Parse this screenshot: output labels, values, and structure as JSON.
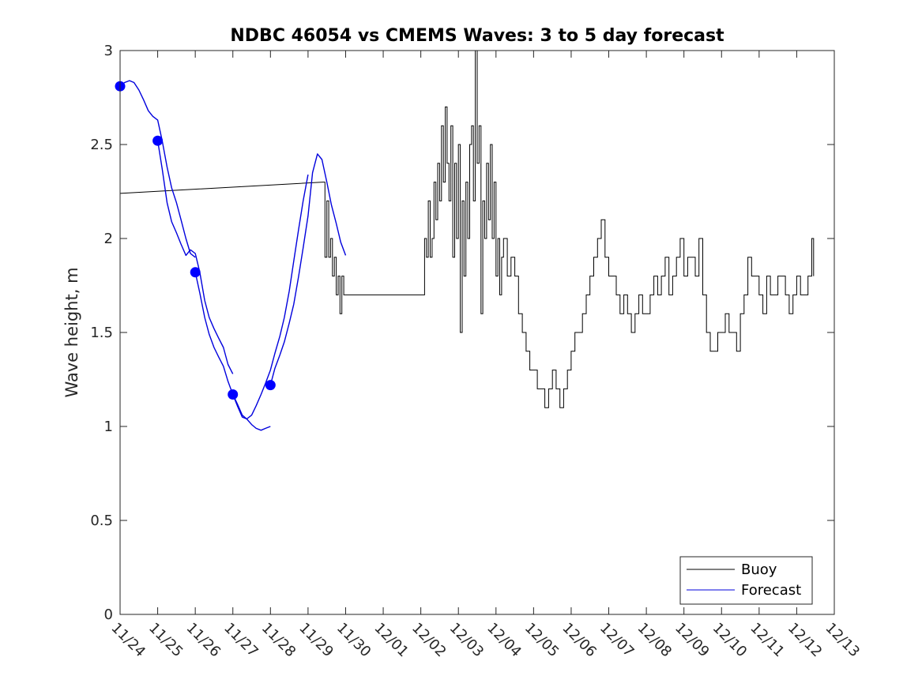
{
  "chart_data": {
    "type": "line",
    "title": "NDBC 46054 vs CMEMS Waves: 3 to 5 day forecast",
    "xlabel": "",
    "ylabel": "Wave height, m",
    "xlim": [
      0,
      19
    ],
    "ylim": [
      0,
      3
    ],
    "yticks": [
      0,
      0.5,
      1,
      1.5,
      2,
      2.5,
      3
    ],
    "ytick_labels": [
      "0",
      "0.5",
      "1",
      "1.5",
      "2",
      "2.5",
      "3"
    ],
    "xticks": [
      0,
      1,
      2,
      3,
      4,
      5,
      6,
      7,
      8,
      9,
      10,
      11,
      12,
      13,
      14,
      15,
      16,
      17,
      18,
      19
    ],
    "xtick_labels": [
      "11/24",
      "11/25",
      "11/26",
      "11/27",
      "11/28",
      "11/29",
      "11/30",
      "12/01",
      "12/02",
      "12/03",
      "12/04",
      "12/05",
      "12/06",
      "12/07",
      "12/08",
      "12/09",
      "12/10",
      "12/11",
      "12/12",
      "12/13"
    ],
    "x_units": "days since 11/24",
    "legend": {
      "position": "bottom-right",
      "entries": [
        "Buoy",
        "Forecast"
      ]
    },
    "colors": {
      "buoy": "#000000",
      "forecast": "#0000dd",
      "markers": "#0000ff",
      "axes": "#262626"
    },
    "series": [
      {
        "name": "Buoy",
        "color": "#000000",
        "x": [
          0,
          5.4,
          5.45,
          5.5,
          5.55,
          5.6,
          5.65,
          5.7,
          5.75,
          5.8,
          5.85,
          5.9,
          5.95,
          6.0,
          8.05,
          8.1,
          8.15,
          8.2,
          8.25,
          8.3,
          8.35,
          8.4,
          8.45,
          8.5,
          8.55,
          8.6,
          8.65,
          8.7,
          8.75,
          8.8,
          8.85,
          8.9,
          8.95,
          9.0,
          9.05,
          9.1,
          9.15,
          9.2,
          9.25,
          9.3,
          9.35,
          9.4,
          9.45,
          9.5,
          9.55,
          9.6,
          9.65,
          9.7,
          9.75,
          9.8,
          9.85,
          9.9,
          9.95,
          10.0,
          10.05,
          10.1,
          10.15,
          10.2,
          10.3,
          10.4,
          10.5,
          10.6,
          10.7,
          10.8,
          10.9,
          11.0,
          11.1,
          11.2,
          11.3,
          11.4,
          11.5,
          11.6,
          11.7,
          11.8,
          11.9,
          12.0,
          12.1,
          12.2,
          12.3,
          12.4,
          12.5,
          12.6,
          12.7,
          12.8,
          12.9,
          13.0,
          13.1,
          13.2,
          13.3,
          13.4,
          13.5,
          13.6,
          13.7,
          13.8,
          13.9,
          14.0,
          14.1,
          14.2,
          14.3,
          14.4,
          14.5,
          14.6,
          14.7,
          14.8,
          14.9,
          15.0,
          15.1,
          15.2,
          15.3,
          15.4,
          15.5,
          15.6,
          15.7,
          15.8,
          15.9,
          16.0,
          16.1,
          16.2,
          16.3,
          16.4,
          16.5,
          16.6,
          16.7,
          16.8,
          16.9,
          17.0,
          17.1,
          17.2,
          17.3,
          17.4,
          17.5,
          17.6,
          17.7,
          17.8,
          17.9,
          18.0,
          18.1,
          18.2,
          18.3,
          18.4,
          18.45
        ],
        "values": [
          2.24,
          2.3,
          1.9,
          2.2,
          1.9,
          2.0,
          1.8,
          1.9,
          1.7,
          1.8,
          1.6,
          1.8,
          1.7,
          1.7,
          1.7,
          2.0,
          1.9,
          2.2,
          1.9,
          2.0,
          2.3,
          2.1,
          2.4,
          2.2,
          2.6,
          2.3,
          2.7,
          2.4,
          2.2,
          2.6,
          1.9,
          2.4,
          2.0,
          2.5,
          1.5,
          2.2,
          1.8,
          2.3,
          2.0,
          2.5,
          2.6,
          2.2,
          3.0,
          2.4,
          2.6,
          1.6,
          2.2,
          2.0,
          2.4,
          2.1,
          2.5,
          2.0,
          2.3,
          1.8,
          2.0,
          1.7,
          1.9,
          2.0,
          1.8,
          1.9,
          1.8,
          1.6,
          1.5,
          1.4,
          1.3,
          1.3,
          1.2,
          1.2,
          1.1,
          1.2,
          1.3,
          1.2,
          1.1,
          1.2,
          1.3,
          1.4,
          1.5,
          1.5,
          1.6,
          1.7,
          1.8,
          1.9,
          2.0,
          2.1,
          1.9,
          1.8,
          1.8,
          1.7,
          1.6,
          1.7,
          1.6,
          1.5,
          1.6,
          1.7,
          1.6,
          1.6,
          1.7,
          1.8,
          1.7,
          1.8,
          1.9,
          1.7,
          1.8,
          1.9,
          2.0,
          1.8,
          1.9,
          1.9,
          1.8,
          2.0,
          1.7,
          1.5,
          1.4,
          1.4,
          1.5,
          1.5,
          1.6,
          1.5,
          1.5,
          1.4,
          1.6,
          1.7,
          1.9,
          1.8,
          1.8,
          1.7,
          1.6,
          1.8,
          1.7,
          1.7,
          1.8,
          1.8,
          1.7,
          1.6,
          1.7,
          1.8,
          1.7,
          1.7,
          1.8,
          2.0,
          1.8
        ]
      },
      {
        "name": "Forecast",
        "color": "#0000dd",
        "segments": [
          {
            "x": [
              0.0,
              0.12,
              0.25,
              0.37,
              0.5,
              0.62,
              0.75,
              0.87,
              1.0,
              1.12,
              1.25,
              1.37,
              1.5,
              1.62,
              1.75,
              1.87,
              2.0
            ],
            "values": [
              2.81,
              2.83,
              2.84,
              2.83,
              2.79,
              2.74,
              2.68,
              2.65,
              2.63,
              2.52,
              2.38,
              2.27,
              2.19,
              2.1,
              2.0,
              1.92,
              1.9
            ]
          },
          {
            "x": [
              1.0,
              1.12,
              1.25,
              1.37,
              1.5,
              1.62,
              1.75,
              1.87,
              2.0,
              2.12,
              2.25,
              2.37,
              2.5,
              2.62,
              2.75,
              2.87,
              3.0
            ],
            "values": [
              2.52,
              2.37,
              2.19,
              2.09,
              2.03,
              1.97,
              1.91,
              1.94,
              1.92,
              1.82,
              1.67,
              1.58,
              1.52,
              1.47,
              1.42,
              1.33,
              1.28
            ]
          },
          {
            "x": [
              2.0,
              2.12,
              2.25,
              2.37,
              2.5,
              2.62,
              2.75,
              2.87,
              3.0,
              3.12,
              3.25,
              3.37,
              3.5,
              3.62,
              3.75,
              3.87,
              4.0
            ],
            "values": [
              1.82,
              1.71,
              1.58,
              1.49,
              1.42,
              1.37,
              1.32,
              1.24,
              1.17,
              1.11,
              1.05,
              1.04,
              1.01,
              0.99,
              0.98,
              0.99,
              1.0
            ]
          },
          {
            "x": [
              3.0,
              3.12,
              3.25,
              3.37,
              3.5,
              3.62,
              3.75,
              3.87,
              4.0,
              4.12,
              4.25,
              4.37,
              4.5,
              4.62,
              4.75,
              4.87,
              5.0
            ],
            "values": [
              1.17,
              1.12,
              1.06,
              1.04,
              1.06,
              1.11,
              1.17,
              1.23,
              1.3,
              1.39,
              1.48,
              1.58,
              1.72,
              1.88,
              2.05,
              2.2,
              2.34
            ]
          },
          {
            "x": [
              4.0,
              4.12,
              4.25,
              4.37,
              4.5,
              4.62,
              4.75,
              4.87,
              5.0,
              5.12,
              5.25,
              5.37,
              5.5,
              5.62,
              5.75,
              5.87,
              6.0
            ],
            "values": [
              1.22,
              1.31,
              1.38,
              1.45,
              1.55,
              1.65,
              1.8,
              1.95,
              2.12,
              2.35,
              2.45,
              2.42,
              2.3,
              2.18,
              2.08,
              1.98,
              1.91
            ]
          }
        ],
        "markers": {
          "x": [
            0.0,
            1.0,
            2.0,
            3.0,
            4.0
          ],
          "values": [
            2.81,
            2.52,
            1.82,
            1.17,
            1.22
          ]
        }
      }
    ]
  }
}
